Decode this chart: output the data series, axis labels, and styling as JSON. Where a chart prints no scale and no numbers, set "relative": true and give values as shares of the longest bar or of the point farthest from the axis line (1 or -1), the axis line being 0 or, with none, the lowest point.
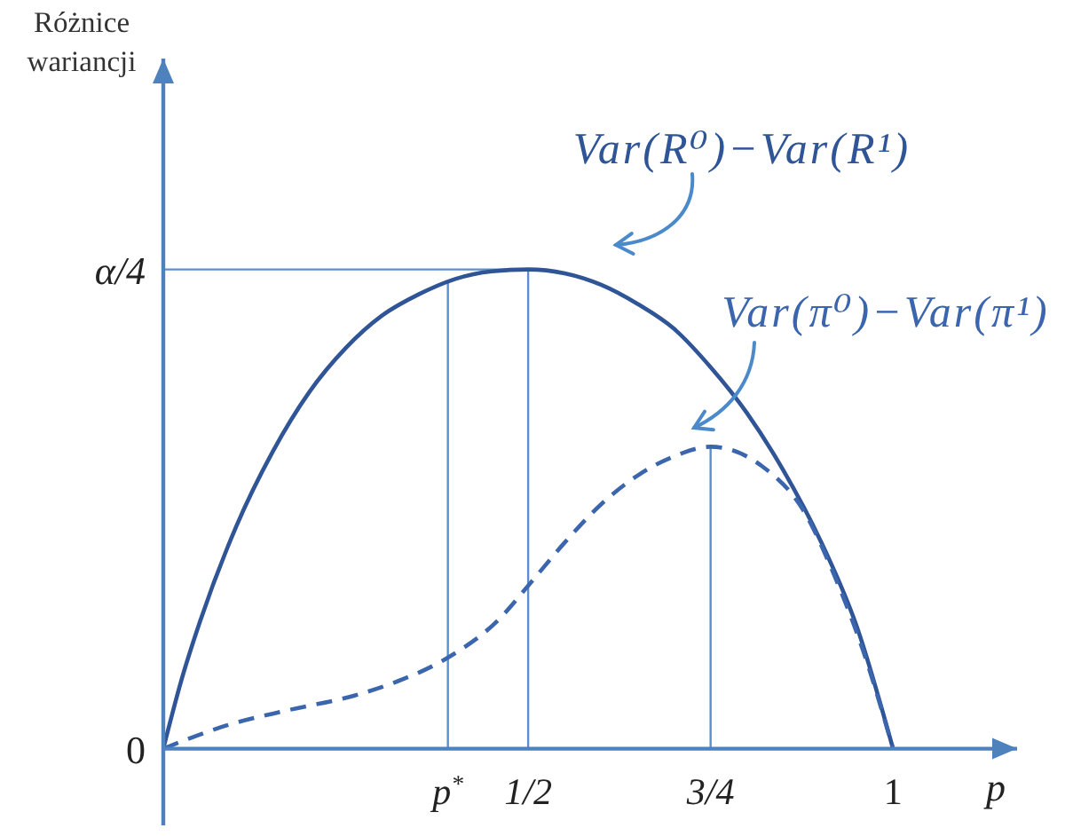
{
  "chart_data": {
    "type": "line",
    "relative": true,
    "xlabel": "p",
    "xlim": [
      0,
      1.17
    ],
    "xticks": [
      {
        "value": 0.39,
        "label": "p$^{*}$"
      },
      {
        "value": 0.5,
        "label": "1/2"
      },
      {
        "value": 0.75,
        "label": "3/4"
      },
      1
    ],
    "annotations": [
      "Różnice wariancji",
      {
        "text": "α/4",
        "x": 0,
        "y": 1
      },
      {
        "text": "0",
        "x": 0,
        "y": 0
      }
    ],
    "grid": false,
    "legend": false,
    "marker": "none",
    "series": [
      {
        "color": "#5b8fd1",
        "x": [
          0,
          0.5
        ],
        "values": [
          1,
          1
        ]
      },
      {
        "color": "#5b8fd1",
        "x": [
          0.39,
          0.39
        ],
        "values": [
          0,
          0.975
        ]
      },
      {
        "color": "#5b8fd1",
        "x": [
          0.5,
          0.5
        ],
        "values": [
          0,
          1
        ]
      },
      {
        "color": "#5b8fd1",
        "x": [
          0.75,
          0.75
        ],
        "values": [
          0,
          0.63
        ]
      },
      {
        "name": "Var(R⁰)−Var(R¹)",
        "color": "#2f5597",
        "x": [
          0,
          0.025,
          0.05,
          0.1,
          0.15,
          0.2,
          0.25,
          0.3,
          0.35,
          0.4,
          0.45,
          0.5,
          0.55,
          0.6,
          0.65,
          0.7,
          0.75,
          0.8,
          0.85,
          0.9,
          0.95,
          1
        ],
        "values": [
          0,
          0.144,
          0.264,
          0.464,
          0.62,
          0.744,
          0.836,
          0.904,
          0.948,
          0.98,
          0.996,
          1,
          0.992,
          0.968,
          0.928,
          0.876,
          0.796,
          0.7,
          0.58,
          0.436,
          0.256,
          0
        ]
      },
      {
        "name": "Var(π⁰)−Var(π¹)",
        "color": "#3b66ad",
        "line_style": "dashed",
        "x": [
          0,
          0.09,
          0.17,
          0.26,
          0.32,
          0.39,
          0.46,
          0.5,
          0.55,
          0.6,
          0.65,
          0.7,
          0.75,
          0.82,
          0.88,
          0.92,
          0.96,
          1
        ],
        "values": [
          0,
          0.05,
          0.08,
          0.11,
          0.14,
          0.19,
          0.27,
          0.34,
          0.43,
          0.51,
          0.57,
          0.61,
          0.63,
          0.59,
          0.49,
          0.36,
          0.2,
          0
        ]
      }
    ]
  }
}
